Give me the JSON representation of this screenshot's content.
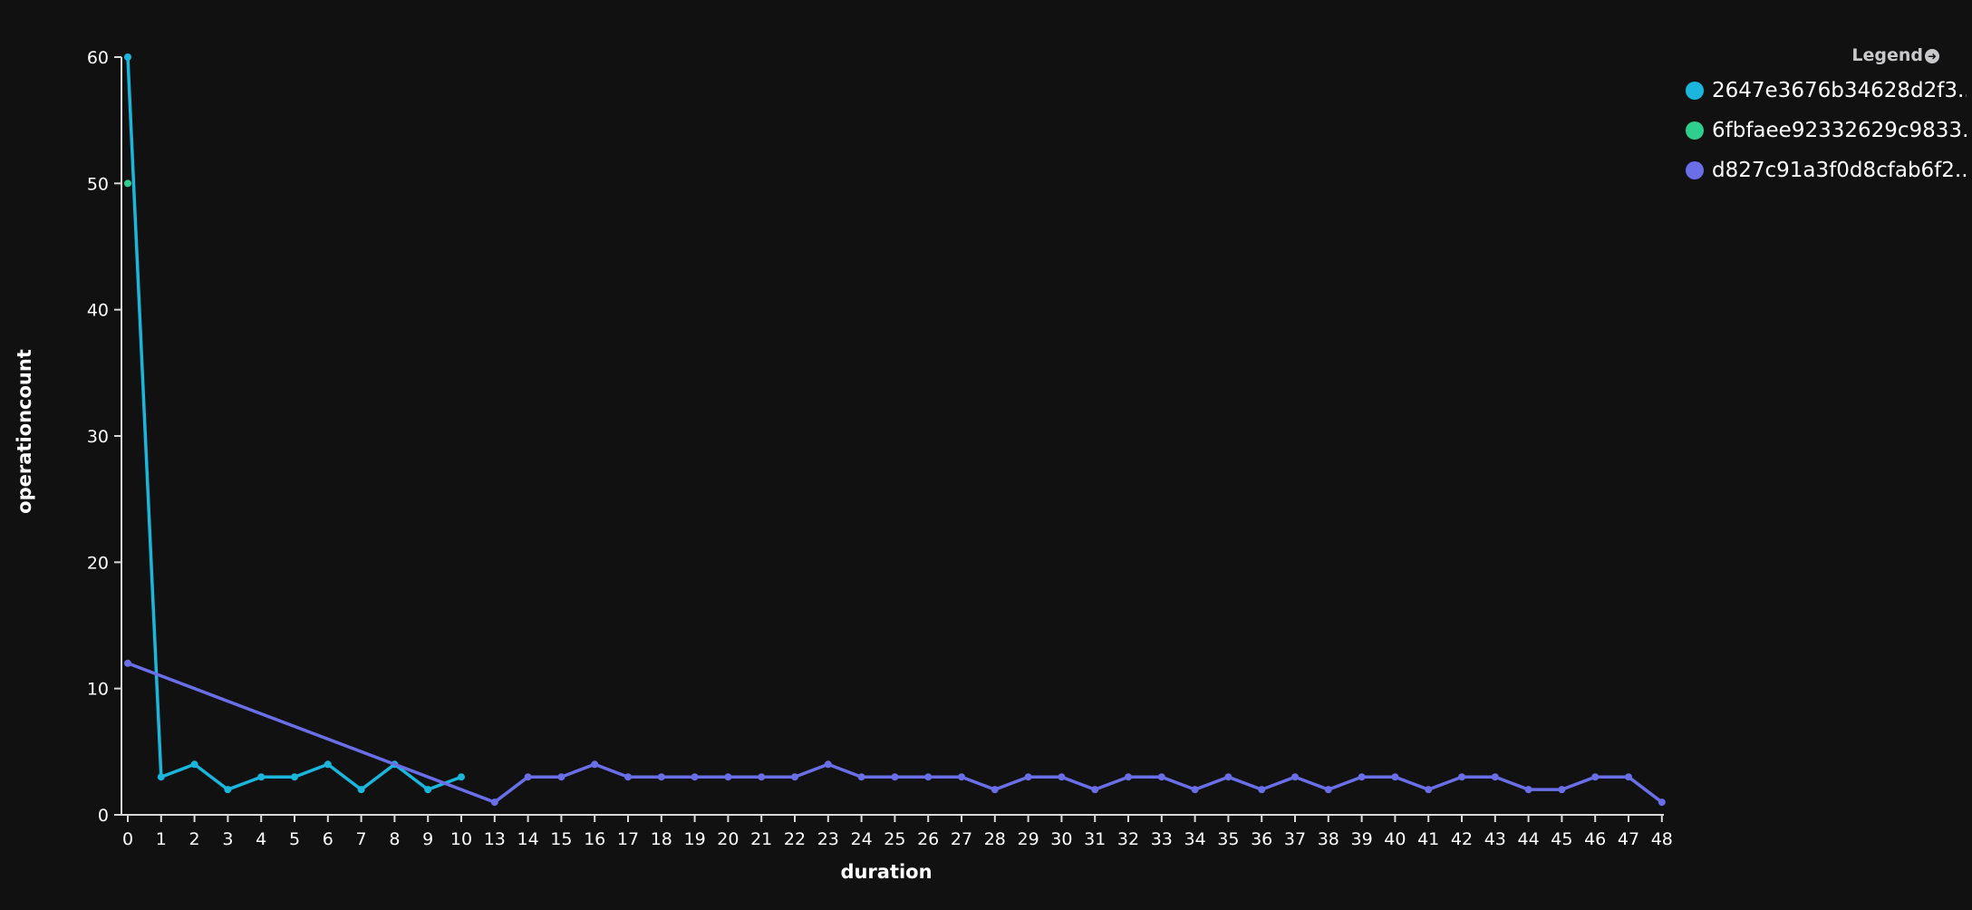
{
  "legend": {
    "title": "Legend",
    "items": [
      {
        "label": "2647e3676b34628d2f3...",
        "color": "#1ab6dc"
      },
      {
        "label": "6fbfaee92332629c9833...",
        "color": "#2ecf8e"
      },
      {
        "label": "d827c91a3f0d8cfab6f2...",
        "color": "#6a6fe8"
      }
    ]
  },
  "chart_data": {
    "type": "line",
    "xlabel": "duration",
    "ylabel": "operationcount",
    "ylim": [
      0,
      60
    ],
    "yticks": [
      0,
      10,
      20,
      30,
      40,
      50,
      60
    ],
    "categories": [
      "0",
      "1",
      "2",
      "3",
      "4",
      "5",
      "6",
      "7",
      "8",
      "9",
      "10",
      "13",
      "14",
      "15",
      "16",
      "17",
      "18",
      "19",
      "20",
      "21",
      "22",
      "23",
      "24",
      "25",
      "26",
      "27",
      "28",
      "29",
      "30",
      "31",
      "32",
      "33",
      "34",
      "35",
      "36",
      "37",
      "38",
      "39",
      "40",
      "41",
      "42",
      "43",
      "44",
      "45",
      "46",
      "47",
      "48"
    ],
    "grid": false,
    "legend_position": "top-right",
    "series": [
      {
        "name": "2647e3676b34628d2f3...",
        "color": "#1ab6dc",
        "points": [
          [
            "0",
            60
          ],
          [
            "1",
            3
          ],
          [
            "2",
            4
          ],
          [
            "3",
            2
          ],
          [
            "4",
            3
          ],
          [
            "5",
            3
          ],
          [
            "6",
            4
          ],
          [
            "7",
            2
          ],
          [
            "8",
            4
          ],
          [
            "9",
            2
          ],
          [
            "10",
            3
          ]
        ]
      },
      {
        "name": "6fbfaee92332629c9833...",
        "color": "#2ecf8e",
        "points": [
          [
            "0",
            50
          ]
        ]
      },
      {
        "name": "d827c91a3f0d8cfab6f2...",
        "color": "#6a6fe8",
        "points": [
          [
            "0",
            12
          ],
          [
            "13",
            1
          ],
          [
            "14",
            3
          ],
          [
            "15",
            3
          ],
          [
            "16",
            4
          ],
          [
            "17",
            3
          ],
          [
            "18",
            3
          ],
          [
            "19",
            3
          ],
          [
            "20",
            3
          ],
          [
            "21",
            3
          ],
          [
            "22",
            3
          ],
          [
            "23",
            4
          ],
          [
            "24",
            3
          ],
          [
            "25",
            3
          ],
          [
            "26",
            3
          ],
          [
            "27",
            3
          ],
          [
            "28",
            2
          ],
          [
            "29",
            3
          ],
          [
            "30",
            3
          ],
          [
            "31",
            2
          ],
          [
            "32",
            3
          ],
          [
            "33",
            3
          ],
          [
            "34",
            2
          ],
          [
            "35",
            3
          ],
          [
            "36",
            2
          ],
          [
            "37",
            3
          ],
          [
            "38",
            2
          ],
          [
            "39",
            3
          ],
          [
            "40",
            3
          ],
          [
            "41",
            2
          ],
          [
            "42",
            3
          ],
          [
            "43",
            3
          ],
          [
            "44",
            2
          ],
          [
            "45",
            2
          ],
          [
            "46",
            3
          ],
          [
            "47",
            3
          ],
          [
            "48",
            1
          ]
        ]
      }
    ]
  }
}
